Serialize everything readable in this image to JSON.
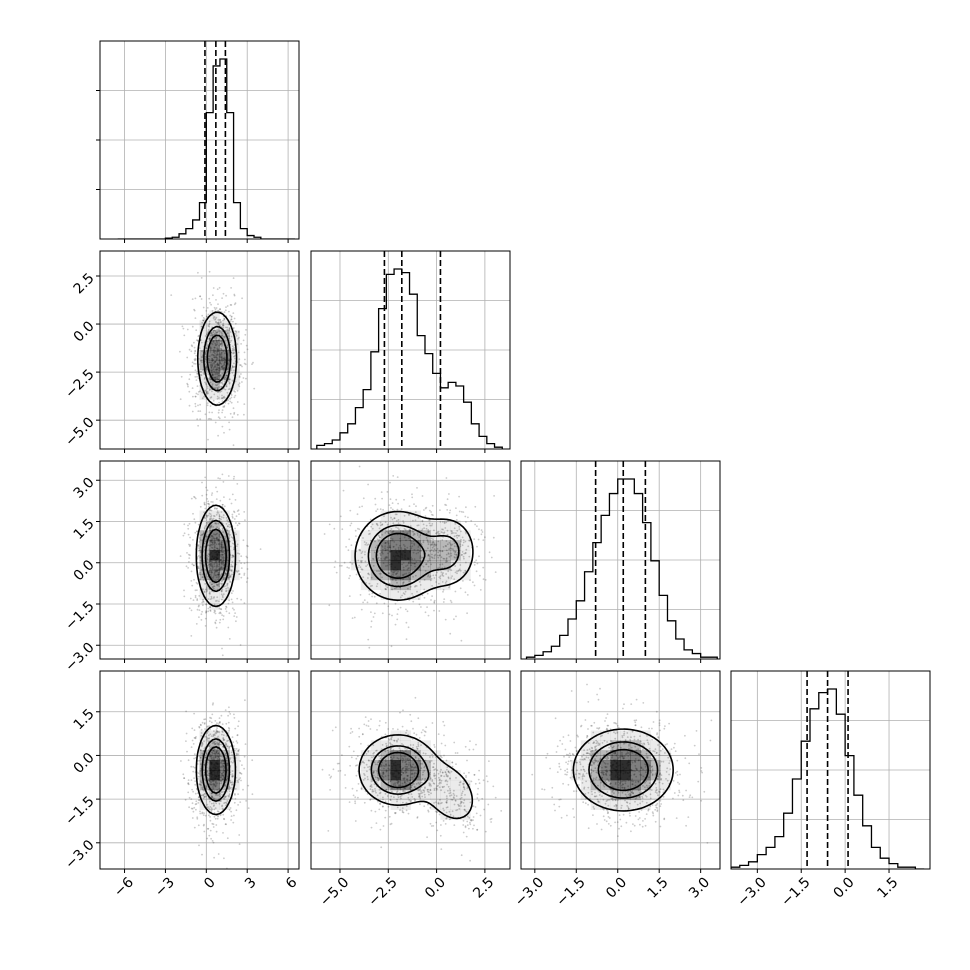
{
  "chart_data": {
    "type": "corner",
    "description_of_layout": "lower-triangular 4x4 grid: 1-D histograms on diagonal, 2-D density panels below",
    "grid": true,
    "variables": [
      {
        "range": [
          -7.8,
          6.8
        ],
        "ticks": [
          -6,
          -3,
          0,
          3,
          6
        ],
        "tick_labels": [
          "−6",
          "−3",
          "0",
          "3",
          "6"
        ],
        "quantiles": [
          -0.1,
          0.7,
          1.4
        ],
        "mean": 0.7,
        "sd": 0.7,
        "hist": {
          "bins": [
            -6.5,
            -6.0,
            -5.5,
            -5.0,
            -4.5,
            -4.0,
            -3.5,
            -3.0,
            -2.5,
            -2.0,
            -1.5,
            -1.0,
            -0.5,
            0.0,
            0.5,
            1.0,
            1.5,
            2.0,
            2.5,
            3.0,
            3.5,
            4.0,
            4.5,
            5.0,
            5.5,
            6.0,
            6.5
          ],
          "counts": [
            0,
            0,
            0,
            0,
            0,
            0,
            0,
            0.005,
            0.01,
            0.03,
            0.06,
            0.11,
            0.21,
            0.73,
            1.0,
            1.04,
            0.73,
            0.21,
            0.06,
            0.02,
            0.01,
            0,
            0,
            0,
            0,
            0
          ]
        }
      },
      {
        "range": [
          -6.5,
          3.8
        ],
        "ticks": [
          -5.0,
          -2.5,
          0.0,
          2.5
        ],
        "tick_labels": [
          "−5.0",
          "−2.5",
          "0.0",
          "2.5"
        ],
        "quantiles": [
          -2.7,
          -1.8,
          0.2
        ],
        "hist": {
          "bins": [
            -6.2,
            -5.8,
            -5.4,
            -5.0,
            -4.6,
            -4.2,
            -3.8,
            -3.4,
            -3.0,
            -2.6,
            -2.2,
            -1.8,
            -1.4,
            -1.0,
            -0.6,
            -0.2,
            0.2,
            0.6,
            1.0,
            1.4,
            1.8,
            2.2,
            2.6,
            3.0,
            3.4
          ],
          "counts": [
            0.02,
            0.03,
            0.05,
            0.09,
            0.14,
            0.23,
            0.33,
            0.54,
            0.78,
            0.97,
            1.0,
            0.98,
            0.86,
            0.63,
            0.53,
            0.42,
            0.34,
            0.37,
            0.35,
            0.26,
            0.14,
            0.07,
            0.03,
            0.01
          ]
        }
      },
      {
        "range": [
          -3.5,
          3.7
        ],
        "ticks": [
          -3.0,
          -1.5,
          0.0,
          1.5,
          3.0
        ],
        "tick_labels": [
          "−3.0",
          "−1.5",
          "0.0",
          "1.5",
          "3.0"
        ],
        "quantiles": [
          -0.8,
          0.2,
          1.0
        ],
        "hist": {
          "bins": [
            -3.3,
            -3.0,
            -2.7,
            -2.4,
            -2.1,
            -1.8,
            -1.5,
            -1.2,
            -0.9,
            -0.6,
            -0.3,
            0.0,
            0.3,
            0.6,
            0.9,
            1.2,
            1.5,
            1.8,
            2.1,
            2.4,
            2.7,
            3.0,
            3.3,
            3.6
          ],
          "counts": [
            0.01,
            0.02,
            0.04,
            0.07,
            0.13,
            0.22,
            0.32,
            0.48,
            0.64,
            0.79,
            0.91,
            0.99,
            0.99,
            0.91,
            0.75,
            0.54,
            0.35,
            0.21,
            0.11,
            0.05,
            0.03,
            0.01,
            0.01
          ]
        }
      },
      {
        "range": [
          -3.9,
          2.9
        ],
        "ticks": [
          -3.0,
          -1.5,
          0.0,
          1.5
        ],
        "tick_labels": [
          "−3.0",
          "−1.5",
          "0.0",
          "1.5"
        ],
        "quantiles": [
          -1.3,
          -0.6,
          0.1
        ],
        "hist": {
          "bins": [
            -3.9,
            -3.6,
            -3.3,
            -3.0,
            -2.7,
            -2.4,
            -2.1,
            -1.8,
            -1.5,
            -1.2,
            -0.9,
            -0.6,
            -0.3,
            0.0,
            0.3,
            0.6,
            0.9,
            1.2,
            1.5,
            1.8,
            2.1,
            2.4,
            2.7
          ],
          "counts": [
            0.01,
            0.02,
            0.04,
            0.08,
            0.12,
            0.18,
            0.31,
            0.5,
            0.71,
            0.89,
            0.98,
            1.0,
            0.86,
            0.63,
            0.41,
            0.24,
            0.12,
            0.06,
            0.03,
            0.01,
            0.01,
            0.0
          ]
        }
      }
    ],
    "pairs": [
      {
        "row": 1,
        "col": 0,
        "components": [
          {
            "w": 1.0,
            "mx": 0.8,
            "my": -1.8,
            "sx": 0.7,
            "sy": 1.2,
            "rho": 0.0
          }
        ]
      },
      {
        "row": 2,
        "col": 0,
        "components": [
          {
            "w": 1.0,
            "mx": 0.7,
            "my": 0.25,
            "sx": 0.7,
            "sy": 0.9,
            "rho": 0.0
          }
        ]
      },
      {
        "row": 2,
        "col": 1,
        "components": [
          {
            "w": 0.75,
            "mx": -2.0,
            "my": 0.25,
            "sx": 1.1,
            "sy": 0.8,
            "rho": 0.0
          },
          {
            "w": 0.35,
            "mx": 0.6,
            "my": 0.4,
            "sx": 0.8,
            "sy": 0.7,
            "rho": 0.0
          }
        ]
      },
      {
        "row": 3,
        "col": 0,
        "components": [
          {
            "w": 1.0,
            "mx": 0.7,
            "my": -0.5,
            "sx": 0.7,
            "sy": 0.75,
            "rho": 0.0
          }
        ]
      },
      {
        "row": 3,
        "col": 1,
        "components": [
          {
            "w": 0.8,
            "mx": -2.0,
            "my": -0.5,
            "sx": 1.0,
            "sy": 0.6,
            "rho": 0.0
          },
          {
            "w": 0.3,
            "mx": 0.7,
            "my": -1.3,
            "sx": 0.8,
            "sy": 0.6,
            "rho": -0.3
          }
        ]
      },
      {
        "row": 3,
        "col": 2,
        "components": [
          {
            "w": 1.0,
            "mx": 0.2,
            "my": -0.5,
            "sx": 0.9,
            "sy": 0.7,
            "rho": 0.0
          }
        ]
      }
    ],
    "contour_levels": [
      0.135,
      0.39,
      0.61,
      0.88
    ],
    "colors": {
      "line": "#000000",
      "grid": "#b0b0b0",
      "shade": "#000000",
      "points": "#444444"
    }
  }
}
